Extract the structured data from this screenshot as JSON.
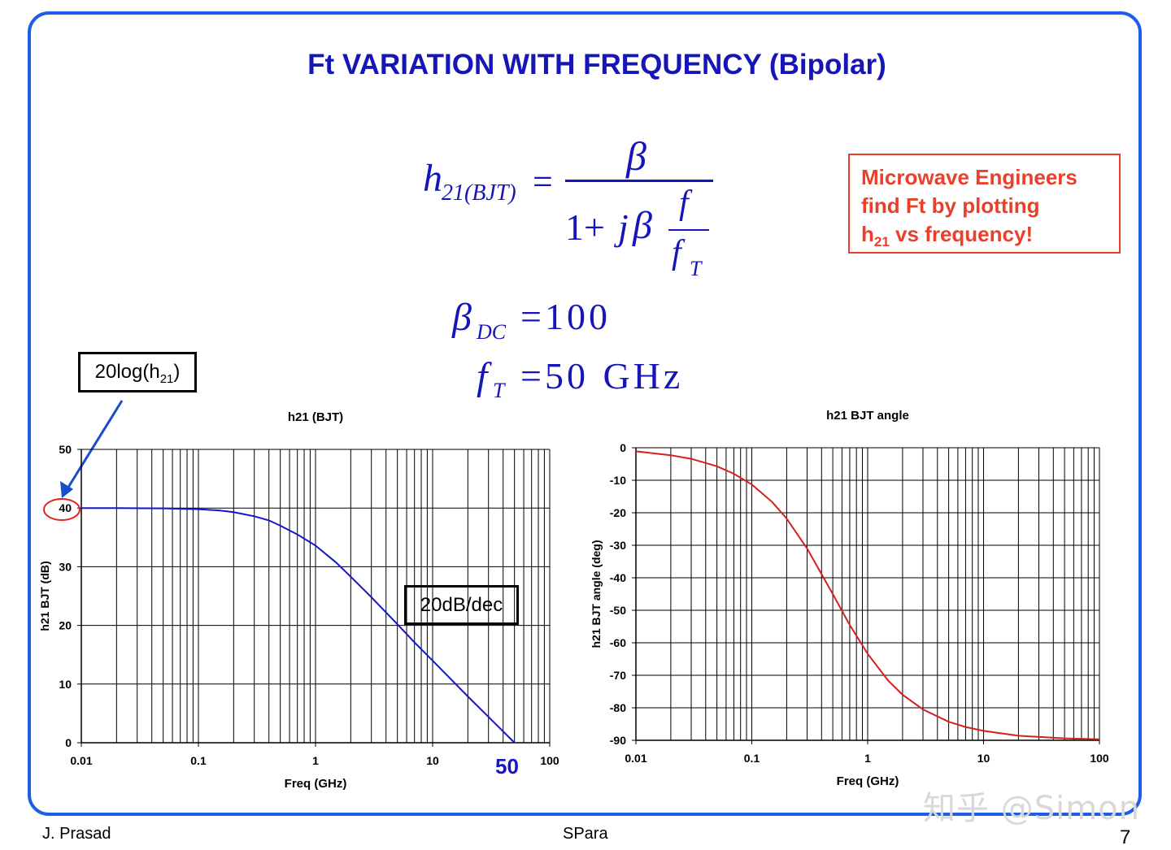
{
  "slide": {
    "title": "Ft VARIATION WITH FREQUENCY (Bipolar)",
    "note_line1": "Microwave Engineers",
    "note_line2": "find Ft by plotting",
    "note_line3_pre": "h",
    "note_line3_sub": "21",
    "note_line3_post": " vs frequency!",
    "callout_log_pre": "20log(h",
    "callout_log_sub": "21",
    "callout_log_post": ")",
    "callout_slope": "20dB/dec",
    "ft_marker": "50",
    "footer_left": "J. Prasad",
    "footer_center": "SPara",
    "page_number": "7",
    "watermark": "知乎 @Simon",
    "accent_color": "#1515b8",
    "note_color": "#e8402a"
  },
  "equations": {
    "h_main": "h",
    "h_sub": "21(BJT)",
    "equals": "=",
    "numerator": "β",
    "denom_one": "1+",
    "denom_j": "j",
    "denom_beta": "β",
    "frac_num": "f",
    "frac_den": "f",
    "frac_den_sub": "T",
    "beta_dc": "β",
    "beta_dc_sub": "DC",
    "beta_dc_val": "=100",
    "ft": "f",
    "ft_sub": "T",
    "ft_val": "=50 GHz"
  },
  "chart_data": [
    {
      "type": "line",
      "title": "h21 (BJT)",
      "xlabel": "Freq (GHz)",
      "ylabel": "h21 BJT (dB)",
      "xscale": "log",
      "xlim": [
        0.01,
        100
      ],
      "ylim": [
        0,
        50
      ],
      "xticks": [
        "0.01",
        "0.1",
        "1",
        "10",
        "100"
      ],
      "yticks": [
        "0",
        "10",
        "20",
        "30",
        "40",
        "50"
      ],
      "grid": true,
      "line_color": "#1515d0",
      "series": [
        {
          "x": [
            0.01,
            0.02,
            0.05,
            0.1,
            0.15,
            0.2,
            0.3,
            0.4,
            0.5,
            0.7,
            1,
            1.5,
            2,
            3,
            5,
            7,
            10,
            20,
            30,
            50
          ],
          "values": [
            40,
            40,
            39.95,
            39.8,
            39.6,
            39.3,
            38.6,
            37.9,
            37.0,
            35.5,
            33.6,
            30.7,
            28.3,
            24.8,
            20.2,
            17.1,
            14.0,
            7.9,
            4.4,
            0
          ]
        }
      ]
    },
    {
      "type": "line",
      "title": "h21 BJT angle",
      "xlabel": "Freq (GHz)",
      "ylabel": "h21 BJT angle (deg)",
      "xscale": "log",
      "xlim": [
        0.01,
        100
      ],
      "ylim": [
        -90,
        0
      ],
      "xticks": [
        "0.01",
        "0.1",
        "1",
        "10",
        "100"
      ],
      "yticks": [
        "0",
        "-10",
        "-20",
        "-30",
        "-40",
        "-50",
        "-60",
        "-70",
        "-80",
        "-90"
      ],
      "grid": true,
      "line_color": "#d42020",
      "series": [
        {
          "x": [
            0.01,
            0.02,
            0.03,
            0.05,
            0.07,
            0.1,
            0.15,
            0.2,
            0.3,
            0.5,
            0.7,
            1,
            1.5,
            2,
            3,
            5,
            7,
            10,
            20,
            50,
            100
          ],
          "values": [
            -1.1,
            -2.3,
            -3.4,
            -5.7,
            -8.0,
            -11.3,
            -16.7,
            -21.8,
            -31.0,
            -45.0,
            -54.5,
            -63.4,
            -71.6,
            -76.0,
            -80.5,
            -84.3,
            -85.9,
            -87.1,
            -88.6,
            -89.4,
            -89.7
          ]
        }
      ]
    }
  ]
}
